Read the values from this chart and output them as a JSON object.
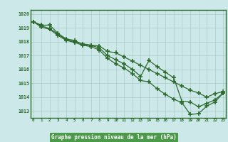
{
  "title": "Graphe pression niveau de la mer (hPa)",
  "xlabel_hours": [
    0,
    1,
    2,
    3,
    4,
    5,
    6,
    7,
    8,
    9,
    10,
    11,
    12,
    13,
    14,
    15,
    16,
    17,
    18,
    19,
    20,
    21,
    22,
    23
  ],
  "ylim": [
    1012.5,
    1020.3
  ],
  "yticks": [
    1013,
    1014,
    1015,
    1016,
    1017,
    1018,
    1019,
    1020
  ],
  "line1": [
    1019.45,
    1019.2,
    1019.2,
    1018.6,
    1018.2,
    1018.1,
    1017.8,
    1017.75,
    1017.7,
    1017.3,
    1017.2,
    1016.9,
    1016.6,
    1016.3,
    1016.0,
    1015.7,
    1015.4,
    1015.1,
    1014.8,
    1014.5,
    1014.3,
    1014.0,
    1014.25,
    1014.4
  ],
  "line2": [
    1019.45,
    1019.15,
    1018.95,
    1018.55,
    1018.15,
    1018.0,
    1017.85,
    1017.75,
    1017.55,
    1017.0,
    1016.7,
    1016.4,
    1016.0,
    1015.5,
    1016.65,
    1016.2,
    1015.8,
    1015.4,
    1013.7,
    1013.65,
    1013.3,
    1013.55,
    1013.8,
    1014.3
  ],
  "line3": [
    1019.45,
    1019.05,
    1018.9,
    1018.45,
    1018.1,
    1017.95,
    1017.75,
    1017.65,
    1017.4,
    1016.8,
    1016.4,
    1016.1,
    1015.7,
    1015.2,
    1015.1,
    1014.6,
    1014.2,
    1013.85,
    1013.6,
    1012.75,
    1012.8,
    1013.35,
    1013.65,
    1014.3
  ],
  "bg_color": "#cce8e8",
  "line_color": "#2d6a2d",
  "grid_color": "#aacaca",
  "label_color": "#2d6a2d",
  "title_bg": "#4a9a4a",
  "title_fg": "#ffffff"
}
